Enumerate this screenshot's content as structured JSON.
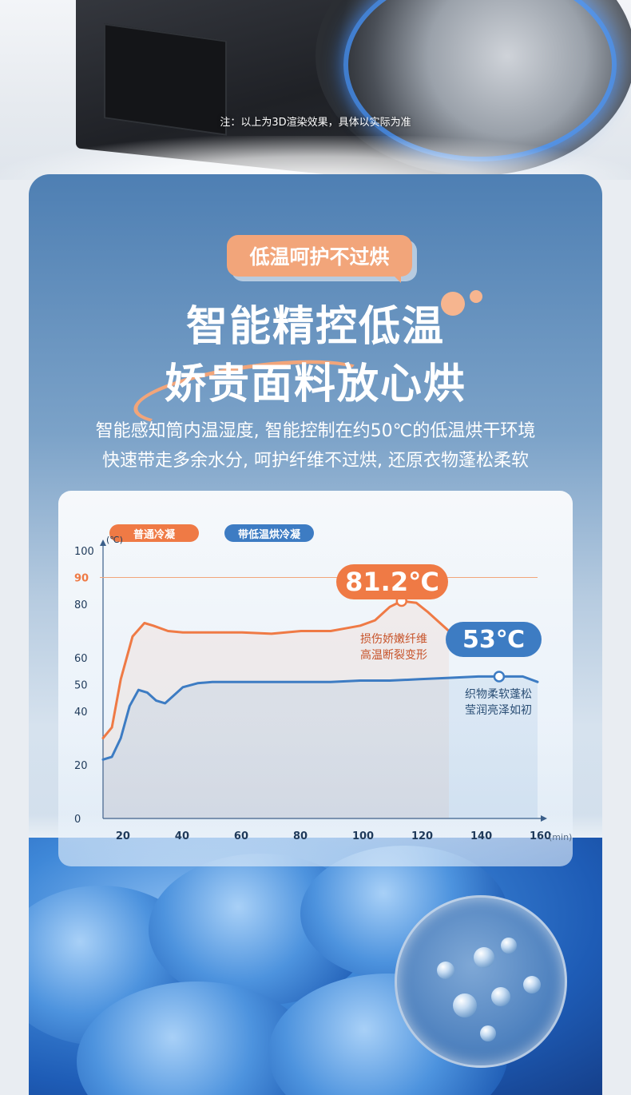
{
  "hero": {
    "note": "注：以上为3D渲染效果，具体以实际为准"
  },
  "panel": {
    "badge": "低温呵护不过烘",
    "title_line1": "智能精控低温",
    "title_line2": "娇贵面料放心烘",
    "desc_line1": "智能感知筒内温湿度, 智能控制在约50℃的低温烘干环境",
    "desc_line2": "快速带走多余水分, 呵护纤维不过烘, 还原衣物蓬松柔软"
  },
  "chart_data": {
    "type": "line",
    "title": "",
    "xlabel": "",
    "x_unit": "(min)",
    "ylabel": "",
    "y_unit": "(℃)",
    "xlim": [
      13,
      160
    ],
    "ylim": [
      0,
      100
    ],
    "x_ticks": [
      20,
      40,
      60,
      80,
      100,
      120,
      140,
      160
    ],
    "y_ticks": [
      0,
      20,
      40,
      50,
      60,
      80,
      90,
      100
    ],
    "reference_line": {
      "y": 90,
      "label": "90",
      "color": "#f2a57a"
    },
    "legend_placement": "top-left",
    "series": [
      {
        "name": "普通冷凝",
        "color": "#ef7a45",
        "x": [
          13,
          16,
          19,
          23,
          27,
          30,
          35,
          40,
          50,
          60,
          70,
          80,
          90,
          95,
          100,
          105,
          110,
          114,
          119,
          123,
          127,
          130
        ],
        "y": [
          30,
          34,
          52,
          68,
          73,
          72,
          70,
          69.5,
          69.5,
          69.5,
          69,
          70,
          70,
          71,
          72,
          74,
          79,
          81.2,
          80.5,
          77,
          73,
          70
        ],
        "peak": {
          "x": 114,
          "y": 81.2,
          "label": "81.2℃"
        },
        "annotation": [
          "损伤娇嫩纤维",
          "高温断裂变形"
        ]
      },
      {
        "name": "带低温烘冷凝",
        "color": "#3d7cc3",
        "x": [
          13,
          16,
          19,
          22,
          25,
          28,
          31,
          34,
          37,
          40,
          45,
          50,
          60,
          70,
          80,
          90,
          100,
          110,
          120,
          130,
          140,
          145,
          150,
          155,
          160
        ],
        "y": [
          22,
          23,
          30,
          42,
          48,
          47,
          44,
          43,
          46,
          49,
          50.5,
          51,
          51,
          51,
          51,
          51,
          51.5,
          51.5,
          52,
          52.5,
          53,
          53,
          53,
          53,
          51
        ],
        "peak": {
          "x": 147,
          "y": 53,
          "label": "53℃"
        },
        "annotation": [
          "织物柔软蓬松",
          "莹润亮泽如初"
        ]
      }
    ]
  },
  "colors": {
    "accent_orange": "#ef7a45",
    "accent_blue": "#3d7cc3",
    "badge": "#f2a57a"
  }
}
